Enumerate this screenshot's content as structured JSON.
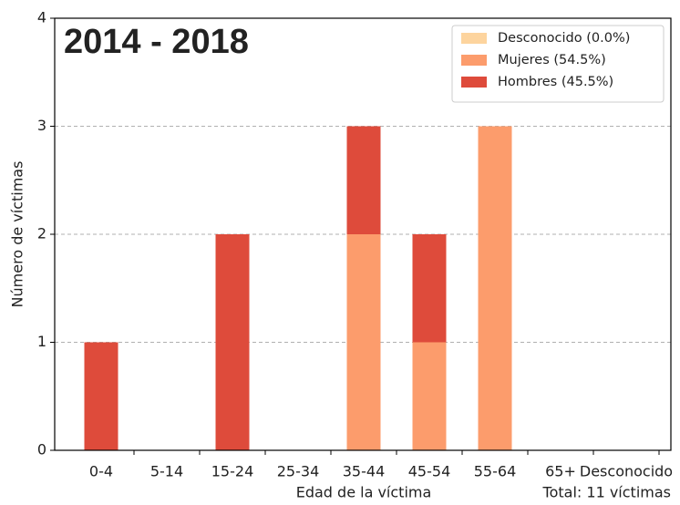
{
  "chart_data": {
    "type": "stacked_bar",
    "title": "2014 - 2018",
    "xlabel": "Edad de la víctima",
    "ylabel": "Número de víctimas",
    "annotation": "Total: 11 víctimas",
    "categories": [
      "0-4",
      "5-14",
      "15-24",
      "25-34",
      "35-44",
      "45-54",
      "55-64",
      "65+",
      "Desconocido"
    ],
    "series": [
      {
        "name": "Desconocido (0.0%)",
        "color": "#fdd49e",
        "values": [
          0,
          0,
          0,
          0,
          0,
          0,
          0,
          0,
          0
        ]
      },
      {
        "name": "Mujeres (54.5%)",
        "color": "#fc9c6c",
        "values": [
          0,
          0,
          0,
          0,
          2,
          1,
          3,
          0,
          0
        ]
      },
      {
        "name": "Hombres (45.5%)",
        "color": "#de4b3b",
        "values": [
          1,
          0,
          2,
          0,
          1,
          1,
          0,
          0,
          0
        ]
      }
    ],
    "ylim": [
      0,
      4
    ],
    "yticks": [
      0,
      1,
      2,
      3,
      4
    ],
    "grid": true,
    "legend": "upper right"
  }
}
